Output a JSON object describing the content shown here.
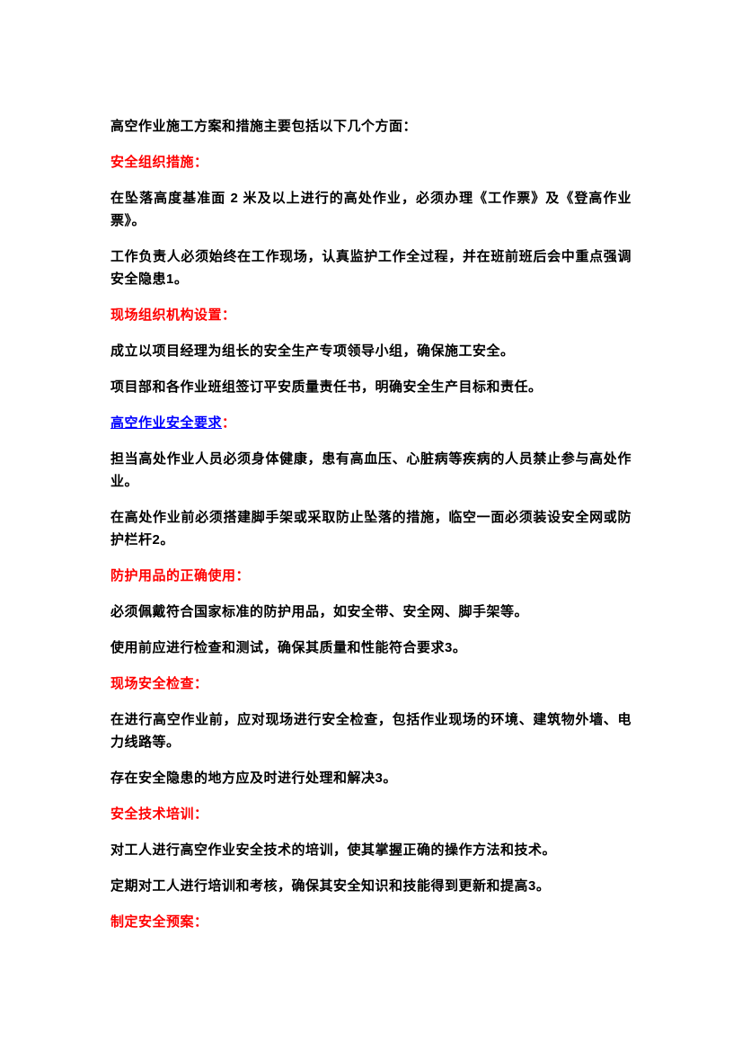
{
  "page": {
    "background_color": "#FFFFFF",
    "body_text_color": "#000000",
    "heading_color": "#FF0000",
    "link_color": "#0000FF"
  },
  "document": {
    "blocks": [
      {
        "type": "body",
        "text": "高空作业施工方案和措施主要包括以下几个方面："
      },
      {
        "type": "heading",
        "text": "安全组织措施："
      },
      {
        "type": "body",
        "text": "在坠落高度基准面 2 米及以上进行的高处作业，必须办理《工作票》及《登高作业票》。"
      },
      {
        "type": "body",
        "text": "工作负责人必须始终在工作现场，认真监护工作全过程，并在班前班后会中重点强调安全隐患1。"
      },
      {
        "type": "heading",
        "text": "现场组织机构设置："
      },
      {
        "type": "body",
        "text": "成立以项目经理为组长的安全生产专项领导小组，确保施工安全。"
      },
      {
        "type": "body",
        "text": "项目部和各作业班组签订平安质量责任书，明确安全生产目标和责任。"
      },
      {
        "type": "link-heading",
        "link_text": "高空作业安全要求",
        "suffix": "："
      },
      {
        "type": "body",
        "text": "担当高处作业人员必须身体健康，患有高血压、心脏病等疾病的人员禁止参与高处作业。"
      },
      {
        "type": "body",
        "text": "在高处作业前必须搭建脚手架或采取防止坠落的措施，临空一面必须装设安全网或防护栏杆2。"
      },
      {
        "type": "heading",
        "text": "防护用品的正确使用："
      },
      {
        "type": "body",
        "text": "必须佩戴符合国家标准的防护用品，如安全带、安全网、脚手架等。"
      },
      {
        "type": "body",
        "text": "使用前应进行检查和测试，确保其质量和性能符合要求3。"
      },
      {
        "type": "heading",
        "text": "现场安全检查："
      },
      {
        "type": "body",
        "text": "在进行高空作业前，应对现场进行安全检查，包括作业现场的环境、建筑物外墙、电力线路等。"
      },
      {
        "type": "body",
        "text": "存在安全隐患的地方应及时进行处理和解决3。"
      },
      {
        "type": "heading",
        "text": "安全技术培训："
      },
      {
        "type": "body",
        "text": "对工人进行高空作业安全技术的培训，使其掌握正确的操作方法和技术。"
      },
      {
        "type": "body",
        "text": "定期对工人进行培训和考核，确保其安全知识和技能得到更新和提高3。"
      },
      {
        "type": "heading",
        "text": "制定安全预案："
      }
    ]
  }
}
